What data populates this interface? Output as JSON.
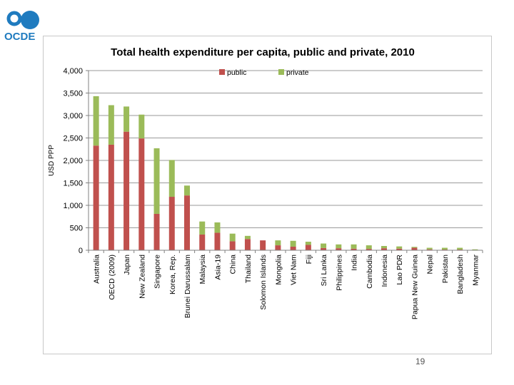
{
  "logo": {
    "text": "OCDE",
    "color": "#1f7bbf"
  },
  "slide": {
    "page_number": "19"
  },
  "chart_data": {
    "type": "bar",
    "stacked": true,
    "title": "Total health expenditure per capita, public and private, 2010",
    "xlabel": "",
    "ylabel": "USD PPP",
    "ylim": [
      0,
      4000
    ],
    "yticks": [
      0,
      500,
      1000,
      1500,
      2000,
      2500,
      3000,
      3500,
      4000
    ],
    "ytick_labels": [
      "0",
      "500",
      "1,000",
      "1,500",
      "2,000",
      "2,500",
      "3,000",
      "3,500",
      "4,000"
    ],
    "grid": true,
    "legend_position": "top",
    "categories": [
      "Australia",
      "OECD (2009)",
      "Japan",
      "New Zealand",
      "Singapore",
      "Korea, Rep.",
      "Brunei Darussalam",
      "Malaysia",
      "Asia-19",
      "China",
      "Thailand",
      "Solomon Islands",
      "Mongolia",
      "Viet Nam",
      "Fiji",
      "Sri Lanka",
      "Philippines",
      "India",
      "Cambodia",
      "Indonesia",
      "Lao PDR",
      "Papua New Guinea",
      "Nepal",
      "Pakistan",
      "Bangladesh",
      "Myanmar"
    ],
    "series": [
      {
        "name": "public",
        "color": "#c0504d",
        "values": [
          2330,
          2350,
          2640,
          2490,
          810,
          1190,
          1220,
          350,
          390,
          200,
          250,
          220,
          110,
          80,
          120,
          50,
          45,
          35,
          30,
          45,
          35,
          55,
          20,
          15,
          15,
          5
        ]
      },
      {
        "name": "private",
        "color": "#9bbb59",
        "values": [
          1100,
          880,
          560,
          530,
          1460,
          820,
          220,
          290,
          230,
          170,
          70,
          0,
          110,
          130,
          70,
          100,
          85,
          95,
          80,
          50,
          50,
          20,
          35,
          40,
          40,
          15
        ]
      }
    ]
  }
}
